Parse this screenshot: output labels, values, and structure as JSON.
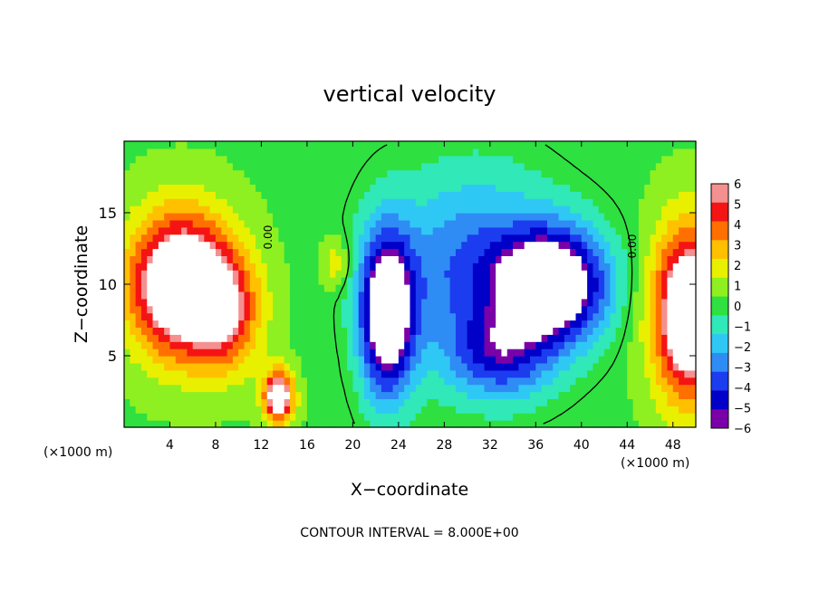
{
  "chart_data": {
    "type": "heatmap",
    "title": "vertical velocity",
    "xlabel": "X−coordinate",
    "ylabel": "Z−coordinate",
    "x_unit_left": "(×1000 m)",
    "x_unit_right": "(×1000 m)",
    "footer": "CONTOUR INTERVAL = 8.000E+00",
    "contour_label": "0.00",
    "xlim": [
      0,
      50
    ],
    "ylim": [
      0,
      20
    ],
    "x_ticks": [
      4,
      8,
      12,
      16,
      20,
      24,
      28,
      32,
      36,
      40,
      44,
      48
    ],
    "x_tick_labels": [
      "4",
      "8",
      "12",
      "16",
      "20",
      "24",
      "28",
      "32",
      "36",
      "40",
      "44",
      "48"
    ],
    "y_ticks": [
      5,
      10,
      15
    ],
    "y_tick_labels": [
      "5",
      "10",
      "15"
    ],
    "colorbar": {
      "range": [
        -6,
        6
      ],
      "tick_values": [
        6,
        5,
        4,
        3,
        2,
        1,
        0,
        -1,
        -2,
        -3,
        -4,
        -5,
        -6
      ],
      "tick_labels": [
        "6",
        "5",
        "4",
        "3",
        "2",
        "1",
        "0",
        "−1",
        "−2",
        "−3",
        "−4",
        "−5",
        "−6"
      ]
    },
    "features": [
      {
        "kind": "updraft",
        "x": 5,
        "z": 10,
        "sx": 4.5,
        "sz": 5.0,
        "value": 9
      },
      {
        "kind": "updraft",
        "x": 9,
        "z": 8,
        "sx": 3.0,
        "sz": 4.0,
        "value": 4
      },
      {
        "kind": "updraft",
        "x": 13.5,
        "z": 2.2,
        "sx": 1.3,
        "sz": 1.8,
        "value": 8
      },
      {
        "kind": "updraft",
        "x": 49.5,
        "z": 8,
        "sx": 3.2,
        "sz": 6.0,
        "value": 9
      },
      {
        "kind": "updraft",
        "x": 18.5,
        "z": 11.5,
        "sx": 1.2,
        "sz": 1.6,
        "value": 2
      },
      {
        "kind": "downdraft",
        "x": 23,
        "z": 8,
        "sx": 2.3,
        "sz": 5.5,
        "value": -9
      },
      {
        "kind": "downdraft",
        "x": 37.5,
        "z": 10,
        "sx": 4.5,
        "sz": 3.8,
        "value": -9
      },
      {
        "kind": "downdraft",
        "x": 30.5,
        "z": 11,
        "sx": 7.0,
        "sz": 6.5,
        "value": -4
      },
      {
        "kind": "downdraft",
        "x": 33,
        "z": 5,
        "sx": 4.5,
        "sz": 3.0,
        "value": -4
      }
    ],
    "palette": [
      {
        "v": -6,
        "c": "#7a00a8"
      },
      {
        "v": -5,
        "c": "#0000c8"
      },
      {
        "v": -4,
        "c": "#1c3cf0"
      },
      {
        "v": -3,
        "c": "#2f8cf5"
      },
      {
        "v": -2,
        "c": "#2fc8f5"
      },
      {
        "v": -1,
        "c": "#30e8b8"
      },
      {
        "v": 0,
        "c": "#2ee040"
      },
      {
        "v": 1,
        "c": "#8ef020"
      },
      {
        "v": 2,
        "c": "#e8f000"
      },
      {
        "v": 3,
        "c": "#ffc000"
      },
      {
        "v": 4,
        "c": "#ff7000"
      },
      {
        "v": 5,
        "c": "#f51414"
      },
      {
        "v": 6,
        "c": "#f59090"
      }
    ]
  }
}
